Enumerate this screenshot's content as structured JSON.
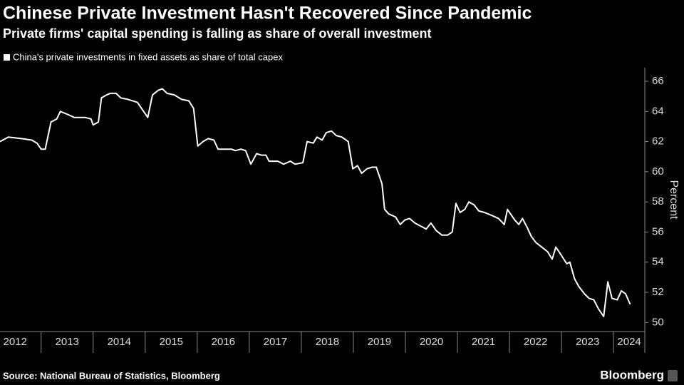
{
  "chart_data": {
    "type": "line",
    "title": "Chinese Private Investment Hasn't Recovered Since Pandemic",
    "subtitle": "Private firms' capital spending is falling as share of overall investment",
    "y_label": "Percent",
    "source": "Source: National Bureau of Statistics, Bloomberg",
    "brand": "Bloomberg",
    "x": [
      2012.21,
      2012.37,
      2012.62,
      2012.82,
      2012.92,
      2013.0,
      2013.08,
      2013.19,
      2013.3,
      2013.37,
      2013.51,
      2013.64,
      2013.85,
      2013.96,
      2014.0,
      2014.1,
      2014.16,
      2014.26,
      2014.33,
      2014.44,
      2014.53,
      2014.67,
      2014.85,
      2014.95,
      2015.05,
      2015.14,
      2015.25,
      2015.33,
      2015.42,
      2015.56,
      2015.7,
      2015.84,
      2015.93,
      2016.01,
      2016.11,
      2016.21,
      2016.32,
      2016.4,
      2016.52,
      2016.66,
      2016.73,
      2016.84,
      2016.93,
      2017.03,
      2017.14,
      2017.23,
      2017.32,
      2017.38,
      2017.55,
      2017.66,
      2017.79,
      2017.88,
      2018.03,
      2018.11,
      2018.23,
      2018.3,
      2018.4,
      2018.48,
      2018.58,
      2018.67,
      2018.78,
      2018.9,
      2018.99,
      2019.08,
      2019.16,
      2019.26,
      2019.36,
      2019.44,
      2019.55,
      2019.6,
      2019.68,
      2019.81,
      2019.9,
      2019.99,
      2020.08,
      2020.18,
      2020.29,
      2020.4,
      2020.49,
      2020.59,
      2020.7,
      2020.81,
      2020.9,
      2020.97,
      2021.05,
      2021.14,
      2021.22,
      2021.32,
      2021.41,
      2021.52,
      2021.66,
      2021.79,
      2021.9,
      2021.96,
      2022.04,
      2022.1,
      2022.18,
      2022.25,
      2022.34,
      2022.42,
      2022.51,
      2022.62,
      2022.73,
      2022.82,
      2022.89,
      2022.97,
      2023.1,
      2023.16,
      2023.25,
      2023.33,
      2023.44,
      2023.53,
      2023.62,
      2023.71,
      2023.81,
      2023.89,
      2023.97,
      2024.07,
      2024.15,
      2024.23,
      2024.32
    ],
    "series": [
      {
        "name": "China's private investments in fixed assets as share of total capex",
        "color": "#ffffff",
        "values": [
          62.0,
          62.3,
          62.2,
          62.1,
          61.9,
          61.5,
          61.5,
          63.3,
          63.5,
          64.0,
          63.8,
          63.6,
          63.6,
          63.5,
          63.1,
          63.3,
          64.9,
          65.1,
          65.2,
          65.2,
          64.9,
          64.8,
          64.6,
          64.1,
          63.6,
          65.1,
          65.4,
          65.5,
          65.2,
          65.1,
          64.8,
          64.7,
          64.2,
          61.7,
          62.0,
          62.2,
          62.1,
          61.5,
          61.5,
          61.5,
          61.4,
          61.5,
          61.4,
          60.5,
          61.2,
          61.1,
          61.1,
          60.7,
          60.7,
          60.5,
          60.7,
          60.5,
          60.6,
          62.0,
          61.9,
          62.3,
          62.1,
          62.6,
          62.7,
          62.4,
          62.3,
          62.0,
          60.2,
          60.4,
          59.9,
          60.2,
          60.3,
          60.3,
          59.2,
          57.5,
          57.2,
          57.0,
          56.5,
          56.8,
          56.9,
          56.6,
          56.4,
          56.2,
          56.6,
          56.1,
          55.8,
          55.8,
          56.0,
          57.9,
          57.3,
          57.5,
          58.0,
          57.8,
          57.4,
          57.3,
          57.1,
          56.9,
          56.5,
          57.5,
          57.1,
          56.8,
          56.5,
          56.9,
          56.3,
          55.7,
          55.3,
          55.0,
          54.7,
          54.2,
          55.0,
          54.6,
          53.9,
          54.0,
          52.9,
          52.4,
          51.9,
          51.6,
          51.5,
          50.9,
          50.4,
          52.7,
          51.6,
          51.5,
          52.1,
          51.9,
          51.2
        ]
      }
    ],
    "xlim": [
      2012.21,
      2024.6
    ],
    "xticks": [
      {
        "value": 2012.5,
        "label": "2012"
      },
      {
        "value": 2013.5,
        "label": "2013"
      },
      {
        "value": 2014.5,
        "label": "2014"
      },
      {
        "value": 2015.5,
        "label": "2015"
      },
      {
        "value": 2016.5,
        "label": "2016"
      },
      {
        "value": 2017.5,
        "label": "2017"
      },
      {
        "value": 2018.5,
        "label": "2018"
      },
      {
        "value": 2019.5,
        "label": "2019"
      },
      {
        "value": 2020.5,
        "label": "2020"
      },
      {
        "value": 2021.5,
        "label": "2021"
      },
      {
        "value": 2022.5,
        "label": "2022"
      },
      {
        "value": 2023.5,
        "label": "2023"
      },
      {
        "value": 2024.3,
        "label": "2024"
      }
    ],
    "ylim": [
      49.4,
      66.9
    ],
    "yticks": [
      50,
      52,
      54,
      56,
      58,
      60,
      62,
      64,
      66
    ],
    "y_axis_side": "right",
    "grid": false
  }
}
